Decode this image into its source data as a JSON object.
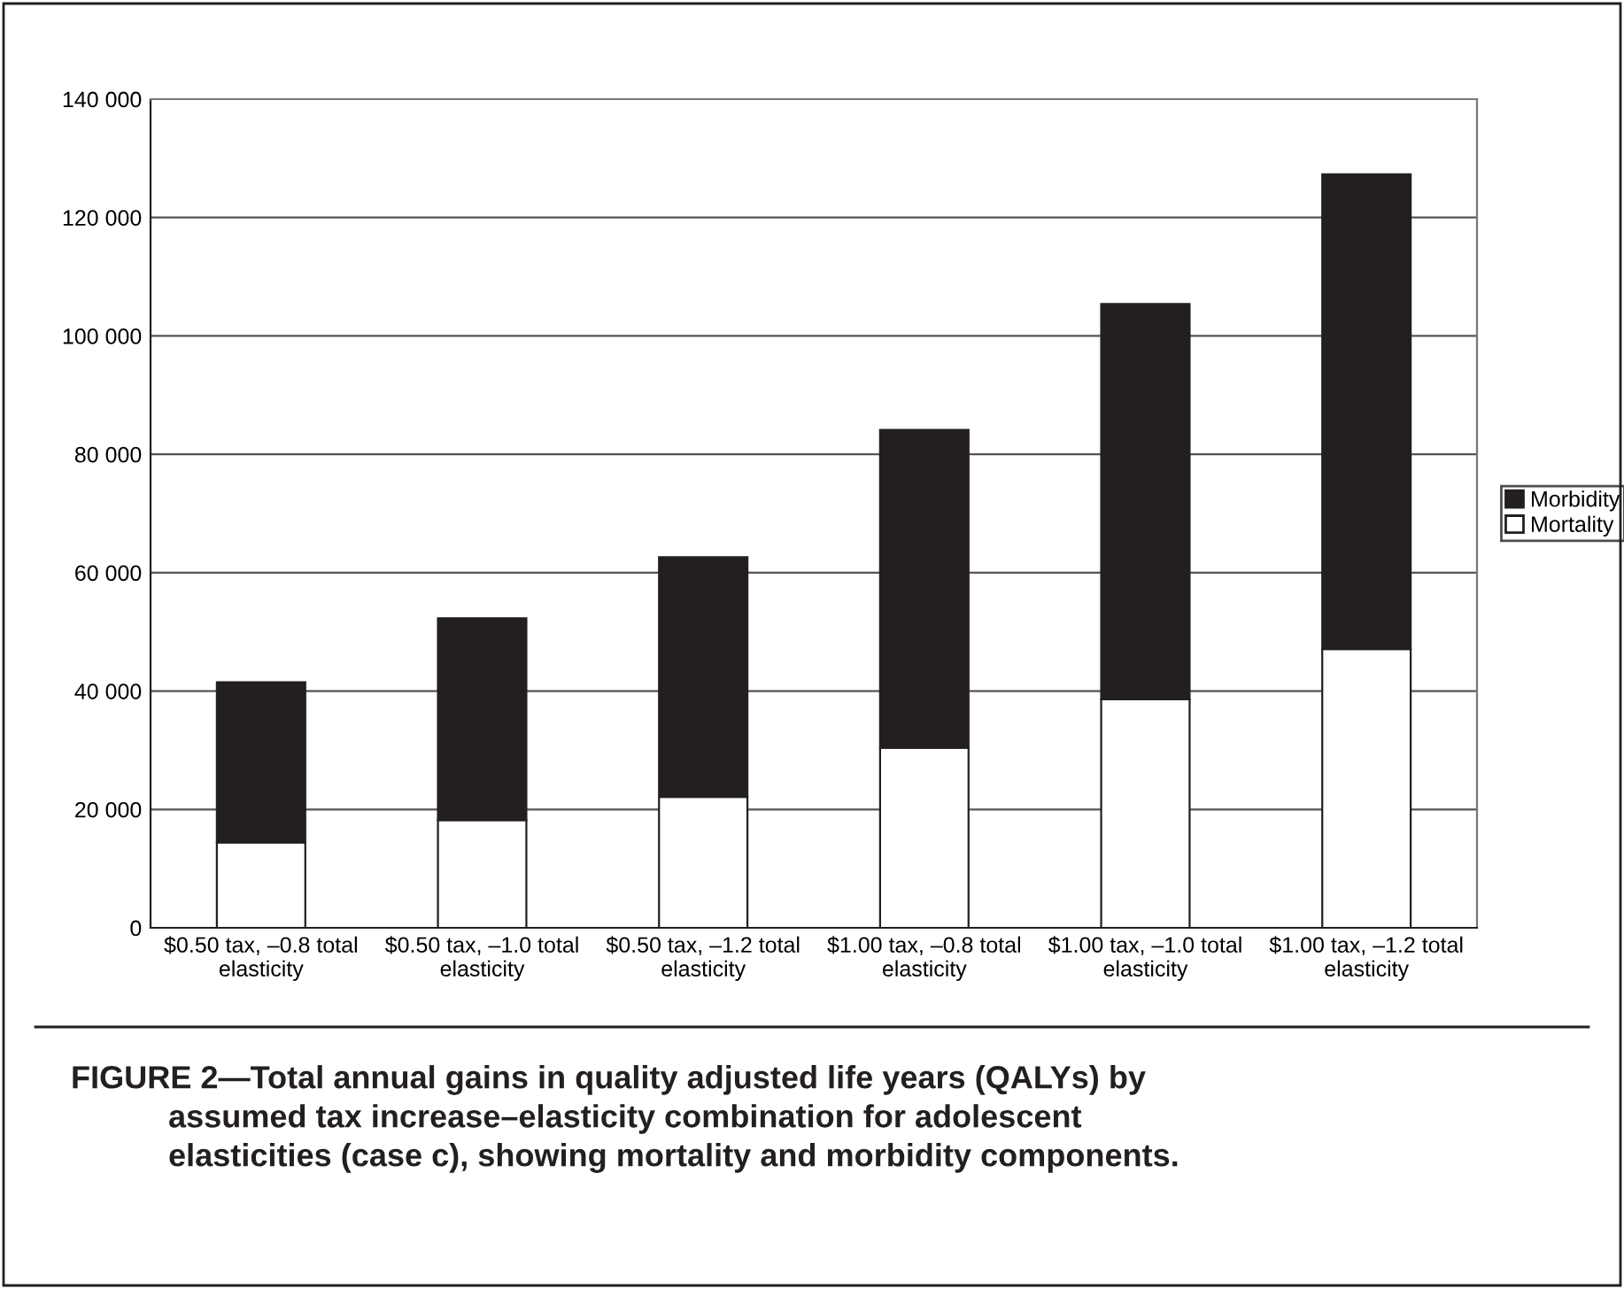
{
  "chart_data": {
    "type": "bar",
    "stacked": true,
    "title": "FIGURE 2—Total annual gains in quality adjusted life years (QALYs) by\nassumed tax increase–elasticity combination for adolescent\nelasticities (case c), showing mortality and morbidity components.",
    "categories": [
      "$0.50 tax, –0.8 total\nelasticity",
      "$0.50 tax, –1.0 total\nelasticity",
      "$0.50 tax, –1.2 total\nelasticity",
      "$1.00 tax, –0.8 total\nelasticity",
      "$1.00 tax, –1.0 total\nelasticity",
      "$1.00 tax, –1.2 total\nelasticity"
    ],
    "series": [
      {
        "name": "Mortality",
        "color": "#ffffff",
        "values": [
          14400,
          18200,
          22100,
          30400,
          38600,
          47100
        ]
      },
      {
        "name": "Morbidity",
        "color": "#231f20",
        "values": [
          27100,
          34100,
          40500,
          53700,
          66800,
          80200
        ]
      }
    ],
    "ylim": [
      0,
      140000
    ],
    "yticks": [
      0,
      {
        "value": 20000,
        "label": "20 000"
      },
      {
        "value": 40000,
        "label": "40 000"
      },
      {
        "value": 60000,
        "label": "60 000"
      },
      {
        "value": 80000,
        "label": "80 000"
      },
      {
        "value": 100000,
        "label": "100 000"
      },
      {
        "value": 120000,
        "label": "120 000"
      },
      {
        "value": 140000,
        "label": "140 000"
      }
    ],
    "grid": "y",
    "legend": "right"
  }
}
